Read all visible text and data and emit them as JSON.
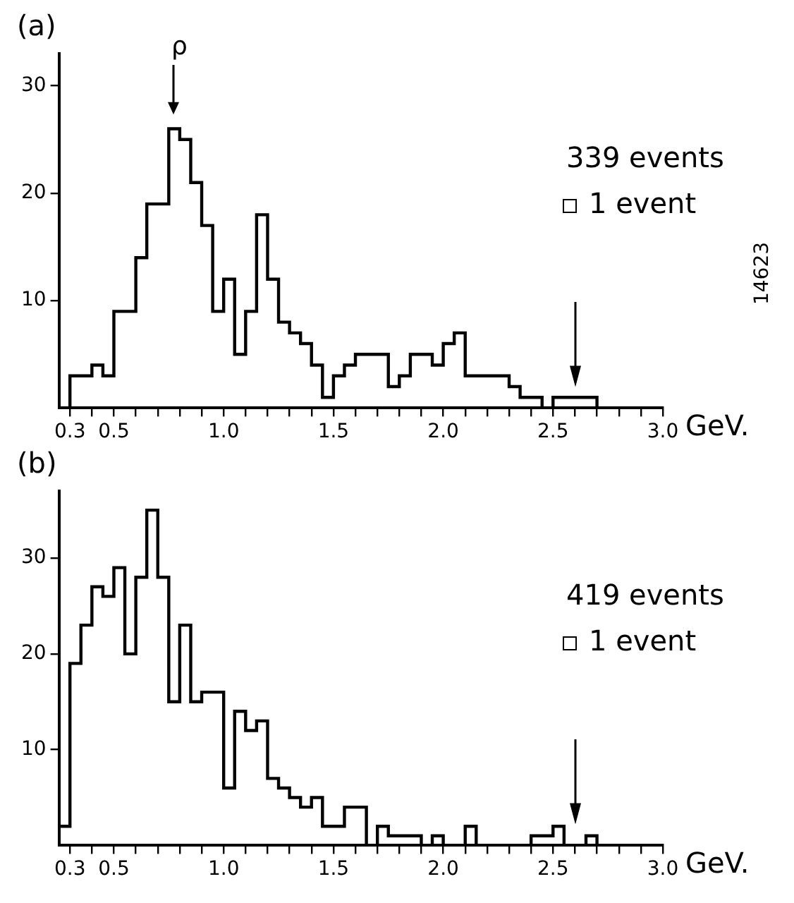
{
  "chart_data": [
    {
      "type": "histogram",
      "title": "(a)",
      "xlabel": "GeV.",
      "color": "#000000",
      "grid": false,
      "bins": [
        0.25,
        0.3,
        0.35,
        0.4,
        0.45,
        0.5,
        0.55,
        0.6,
        0.65,
        0.7,
        0.75,
        0.8,
        0.85,
        0.9,
        0.95,
        1.0,
        1.05,
        1.1,
        1.15,
        1.2,
        1.25,
        1.3,
        1.35,
        1.4,
        1.45,
        1.5,
        1.55,
        1.6,
        1.65,
        1.7,
        1.75,
        1.8,
        1.85,
        1.9,
        1.95,
        2.0,
        2.05,
        2.1,
        2.15,
        2.2,
        2.25,
        2.3,
        2.35,
        2.4,
        2.45,
        2.5,
        2.55,
        2.6,
        2.65,
        2.7,
        2.75,
        2.8,
        2.85,
        2.9,
        2.95,
        3.0
      ],
      "values": [
        0,
        3,
        3,
        4,
        3,
        9,
        9,
        14,
        19,
        19,
        26,
        25,
        21,
        17,
        9,
        12,
        5,
        9,
        18,
        12,
        8,
        7,
        6,
        4,
        1,
        3,
        4,
        5,
        5,
        5,
        2,
        3,
        5,
        5,
        4,
        6,
        7,
        3,
        3,
        3,
        3,
        2,
        1,
        1,
        0,
        1,
        1,
        1,
        1,
        0,
        0,
        0,
        0,
        0,
        0
      ],
      "xlim": [
        0.25,
        3.0
      ],
      "ylim": [
        0,
        33
      ],
      "xticks": [
        0.3,
        {
          "value": 0.4,
          "label": null
        },
        0.5,
        {
          "value": 0.6,
          "label": null
        },
        {
          "value": 0.7,
          "label": null
        },
        {
          "value": 0.8,
          "label": null
        },
        {
          "value": 0.9,
          "label": null
        },
        {
          "value": 1.0,
          "label": "1.0"
        },
        {
          "value": 1.1,
          "label": null
        },
        {
          "value": 1.2,
          "label": null
        },
        {
          "value": 1.3,
          "label": null
        },
        {
          "value": 1.4,
          "label": null
        },
        1.5,
        {
          "value": 1.6,
          "label": null
        },
        {
          "value": 1.7,
          "label": null
        },
        {
          "value": 1.8,
          "label": null
        },
        {
          "value": 1.9,
          "label": null
        },
        {
          "value": 2.0,
          "label": "2.0"
        },
        {
          "value": 2.1,
          "label": null
        },
        {
          "value": 2.2,
          "label": null
        },
        {
          "value": 2.3,
          "label": null
        },
        {
          "value": 2.4,
          "label": null
        },
        2.5,
        {
          "value": 2.6,
          "label": null
        },
        {
          "value": 2.7,
          "label": null
        },
        {
          "value": 2.8,
          "label": null
        },
        {
          "value": 2.9,
          "label": null
        },
        {
          "value": 3.0,
          "label": "3.0"
        }
      ],
      "yticks": [
        10,
        20,
        30
      ],
      "annotations": [
        "339 events",
        "1 event",
        "14623",
        "ρ"
      ]
    },
    {
      "type": "histogram",
      "title": "(b)",
      "xlabel": "GeV.",
      "color": "#000000",
      "grid": false,
      "bins": [
        0.25,
        0.3,
        0.35,
        0.4,
        0.45,
        0.5,
        0.55,
        0.6,
        0.65,
        0.7,
        0.75,
        0.8,
        0.85,
        0.9,
        0.95,
        1.0,
        1.05,
        1.1,
        1.15,
        1.2,
        1.25,
        1.3,
        1.35,
        1.4,
        1.45,
        1.5,
        1.55,
        1.6,
        1.65,
        1.7,
        1.75,
        1.8,
        1.85,
        1.9,
        1.95,
        2.0,
        2.05,
        2.1,
        2.15,
        2.2,
        2.25,
        2.3,
        2.35,
        2.4,
        2.45,
        2.5,
        2.55,
        2.6,
        2.65,
        2.7,
        2.75,
        2.8,
        2.85,
        2.9,
        2.95,
        3.0
      ],
      "values": [
        2,
        19,
        23,
        27,
        26,
        29,
        20,
        28,
        35,
        28,
        15,
        23,
        15,
        16,
        16,
        6,
        14,
        12,
        13,
        7,
        6,
        5,
        4,
        5,
        2,
        2,
        4,
        4,
        0,
        2,
        1,
        1,
        1,
        0,
        1,
        0,
        0,
        2,
        0,
        0,
        0,
        0,
        0,
        1,
        1,
        2,
        0,
        0,
        1,
        0,
        0,
        0,
        0,
        0,
        0
      ],
      "xlim": [
        0.25,
        3.0
      ],
      "ylim": [
        0,
        37
      ],
      "xticks": [
        0.3,
        {
          "value": 0.4,
          "label": null
        },
        0.5,
        {
          "value": 0.6,
          "label": null
        },
        {
          "value": 0.7,
          "label": null
        },
        {
          "value": 0.8,
          "label": null
        },
        {
          "value": 0.9,
          "label": null
        },
        {
          "value": 1.0,
          "label": "1.0"
        },
        {
          "value": 1.1,
          "label": null
        },
        {
          "value": 1.2,
          "label": null
        },
        {
          "value": 1.3,
          "label": null
        },
        {
          "value": 1.4,
          "label": null
        },
        1.5,
        {
          "value": 1.6,
          "label": null
        },
        {
          "value": 1.7,
          "label": null
        },
        {
          "value": 1.8,
          "label": null
        },
        {
          "value": 1.9,
          "label": null
        },
        {
          "value": 2.0,
          "label": "2.0"
        },
        {
          "value": 2.1,
          "label": null
        },
        {
          "value": 2.2,
          "label": null
        },
        {
          "value": 2.3,
          "label": null
        },
        {
          "value": 2.4,
          "label": null
        },
        2.5,
        {
          "value": 2.6,
          "label": null
        },
        {
          "value": 2.7,
          "label": null
        },
        {
          "value": 2.8,
          "label": null
        },
        {
          "value": 2.9,
          "label": null
        },
        {
          "value": 3.0,
          "label": "3.0"
        }
      ],
      "yticks": [
        10,
        20,
        30
      ],
      "annotations": [
        "419 events",
        "1 event"
      ]
    }
  ]
}
